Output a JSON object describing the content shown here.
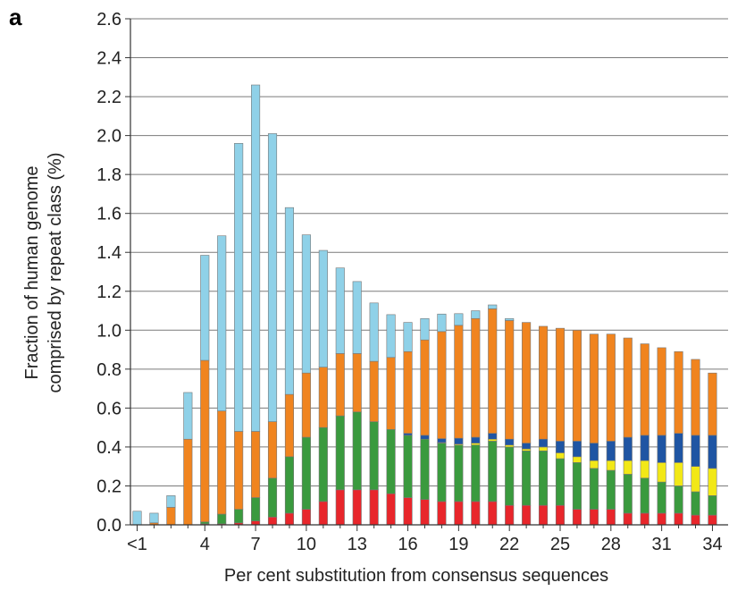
{
  "panel_label": "a",
  "chart_data": {
    "type": "bar",
    "stacked": true,
    "title": "",
    "xlabel": "Per cent substitution from consensus sequences",
    "ylabel_lines": [
      "Fraction of human genome",
      "comprised by repeat class (%)"
    ],
    "ylim": [
      0,
      2.6
    ],
    "yticks": [
      "0.0",
      "0.2",
      "0.4",
      "0.6",
      "0.8",
      "1.0",
      "1.2",
      "1.4",
      "1.6",
      "1.8",
      "2.0",
      "2.2",
      "2.4",
      "2.6"
    ],
    "grid": "horizontal",
    "categories": [
      "<1",
      "1",
      "2",
      "3",
      "4",
      "5",
      "6",
      "7",
      "8",
      "9",
      "10",
      "11",
      "12",
      "13",
      "14",
      "15",
      "16",
      "17",
      "18",
      "19",
      "20",
      "21",
      "22",
      "23",
      "24",
      "25",
      "26",
      "27",
      "28",
      "29",
      "30",
      "31",
      "32",
      "33",
      "34"
    ],
    "x_tick_labels": {
      "0": "<1",
      "4": "4",
      "7": "7",
      "10": "10",
      "13": "13",
      "16": "16",
      "19": "19",
      "22": "22",
      "25": "25",
      "28": "28",
      "31": "31",
      "34": "34"
    },
    "series": [
      {
        "color": "#e8262b",
        "values": [
          0,
          0,
          0,
          0,
          0.005,
          0.005,
          0.01,
          0.02,
          0.04,
          0.06,
          0.08,
          0.12,
          0.18,
          0.18,
          0.18,
          0.16,
          0.14,
          0.13,
          0.12,
          0.12,
          0.12,
          0.12,
          0.1,
          0.1,
          0.1,
          0.1,
          0.08,
          0.08,
          0.08,
          0.06,
          0.06,
          0.06,
          0.06,
          0.05,
          0.05
        ]
      },
      {
        "color": "#3a9a3e",
        "values": [
          0,
          0,
          0,
          0,
          0.01,
          0.05,
          0.07,
          0.12,
          0.2,
          0.29,
          0.37,
          0.38,
          0.38,
          0.4,
          0.35,
          0.33,
          0.32,
          0.31,
          0.3,
          0.29,
          0.29,
          0.31,
          0.3,
          0.28,
          0.28,
          0.24,
          0.24,
          0.21,
          0.2,
          0.2,
          0.18,
          0.16,
          0.14,
          0.12,
          0.1
        ]
      },
      {
        "color": "#f2e817",
        "values": [
          0,
          0,
          0,
          0,
          0,
          0,
          0,
          0,
          0,
          0,
          0,
          0,
          0,
          0,
          0,
          0,
          0,
          0,
          0.003,
          0.005,
          0.01,
          0.01,
          0.01,
          0.01,
          0.02,
          0.03,
          0.03,
          0.04,
          0.05,
          0.07,
          0.09,
          0.1,
          0.12,
          0.13,
          0.14
        ]
      },
      {
        "color": "#1f55a3",
        "values": [
          0,
          0,
          0,
          0,
          0,
          0,
          0,
          0,
          0,
          0,
          0,
          0,
          0,
          0,
          0,
          0,
          0.01,
          0.02,
          0.02,
          0.03,
          0.03,
          0.03,
          0.03,
          0.03,
          0.04,
          0.06,
          0.08,
          0.09,
          0.1,
          0.12,
          0.13,
          0.14,
          0.15,
          0.16,
          0.17
        ]
      },
      {
        "color": "#f0841f",
        "values": [
          0,
          0.01,
          0.09,
          0.44,
          0.83,
          0.53,
          0.4,
          0.34,
          0.29,
          0.32,
          0.33,
          0.31,
          0.32,
          0.3,
          0.31,
          0.37,
          0.42,
          0.49,
          0.55,
          0.58,
          0.61,
          0.64,
          0.61,
          0.62,
          0.58,
          0.58,
          0.57,
          0.56,
          0.55,
          0.51,
          0.47,
          0.45,
          0.42,
          0.39,
          0.32
        ]
      },
      {
        "color": "#8fd1e8",
        "values": [
          0.07,
          0.05,
          0.06,
          0.24,
          0.54,
          0.9,
          1.48,
          1.78,
          1.48,
          0.96,
          0.71,
          0.6,
          0.44,
          0.37,
          0.3,
          0.22,
          0.15,
          0.11,
          0.09,
          0.06,
          0.04,
          0.02,
          0.01,
          0,
          0,
          0,
          0,
          0,
          0,
          0,
          0,
          0,
          0,
          0,
          0
        ]
      }
    ]
  }
}
